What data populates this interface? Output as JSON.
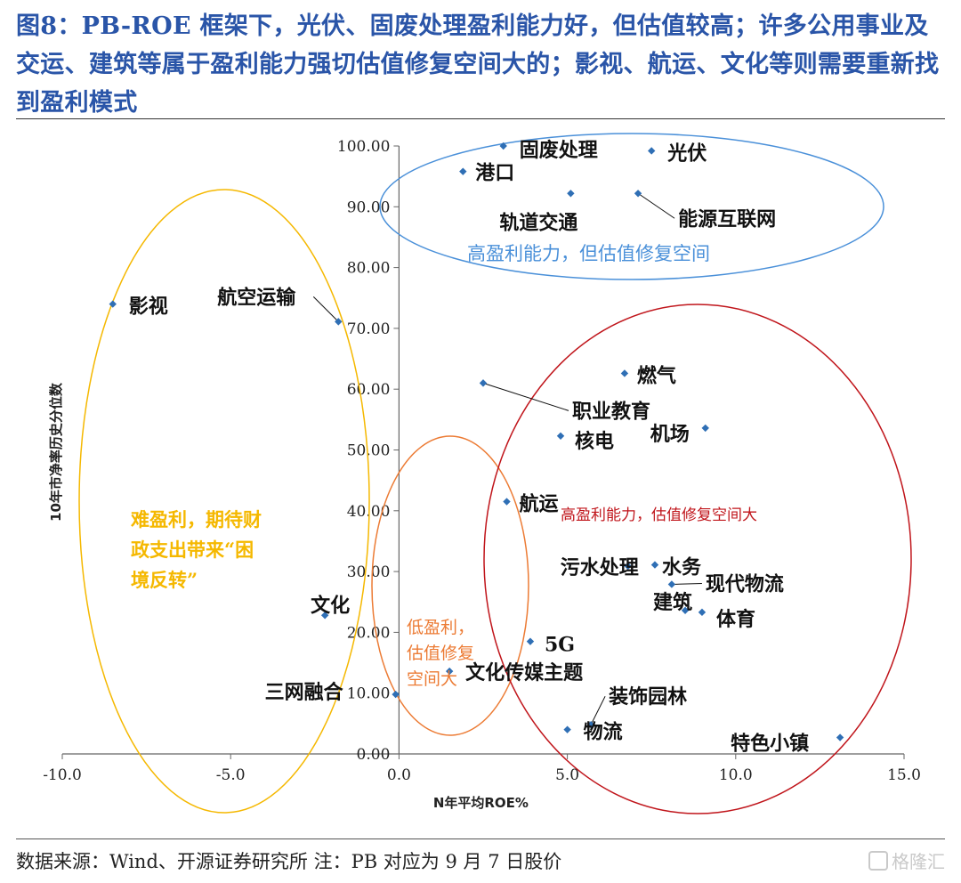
{
  "title": "图8：PB-ROE 框架下，光伏、固废处理盈利能力好，但估值较高；许多公用事业及交运、建筑等属于盈利能力强切估值修复空间大的；影视、航运、文化等则需要重新找到盈利模式",
  "source": "数据来源：Wind、开源证券研究所  注：PB 对应为 9 月 7 日股价",
  "watermark": "格隆汇",
  "colors": {
    "point": "#2f6fb5",
    "blue": "#4a90d9",
    "yellow": "#f5b800",
    "orange": "#ec7b34",
    "red": "#c0151b",
    "title": "#2a55a8"
  },
  "chart_data": {
    "type": "scatter",
    "xlabel": "N年平均ROE%",
    "ylabel": "10年市净率历史分位数",
    "xlim": [
      -10,
      15
    ],
    "ylim": [
      0,
      100
    ],
    "xticks": [
      "-10.0",
      "-5.0",
      "0.0",
      "5.0",
      "10.0",
      "15.0"
    ],
    "yticks": [
      "0.00",
      "10.00",
      "20.00",
      "30.00",
      "40.00",
      "50.00",
      "60.00",
      "70.00",
      "80.00",
      "90.00",
      "100.00"
    ],
    "points": [
      {
        "label": "固废处理",
        "x": 3.1,
        "y": 100.0
      },
      {
        "label": "光伏",
        "x": 7.5,
        "y": 99.2
      },
      {
        "label": "港口",
        "x": 1.9,
        "y": 95.8
      },
      {
        "label": "轨道交通",
        "x": 5.1,
        "y": 92.2
      },
      {
        "label": "能源互联网",
        "x": 7.1,
        "y": 92.2
      },
      {
        "label": "影视",
        "x": -8.5,
        "y": 74.0
      },
      {
        "label": "航空运输",
        "x": -1.8,
        "y": 71.1
      },
      {
        "label": "燃气",
        "x": 6.7,
        "y": 62.6
      },
      {
        "label": "职业教育",
        "x": 2.5,
        "y": 61.0
      },
      {
        "label": "机场",
        "x": 9.1,
        "y": 53.6
      },
      {
        "label": "核电",
        "x": 4.8,
        "y": 52.3
      },
      {
        "label": "航运",
        "x": 3.2,
        "y": 41.5
      },
      {
        "label": "水务",
        "x": 7.6,
        "y": 31.1
      },
      {
        "label": "污水处理",
        "x": 6.8,
        "y": 30.9
      },
      {
        "label": "现代物流",
        "x": 8.1,
        "y": 27.9
      },
      {
        "label": "建筑",
        "x": 8.5,
        "y": 23.6
      },
      {
        "label": "体育",
        "x": 9.0,
        "y": 23.3
      },
      {
        "label": "文化",
        "x": -2.2,
        "y": 22.8
      },
      {
        "label": "5G",
        "x": 3.9,
        "y": 18.5
      },
      {
        "label": "文化传媒主题",
        "x": 1.5,
        "y": 13.6
      },
      {
        "label": "三网融合",
        "x": -0.1,
        "y": 9.8
      },
      {
        "label": "装饰园林",
        "x": 5.7,
        "y": 4.8
      },
      {
        "label": "物流",
        "x": 5.0,
        "y": 4.0
      },
      {
        "label": "特色小镇",
        "x": 13.1,
        "y": 2.7
      }
    ],
    "annotations": [
      {
        "text": "高盈利能力，但估值修复空间",
        "color": "blue"
      },
      {
        "text": "高盈利能力，估值修复空间大",
        "color": "red"
      },
      {
        "text": "低盈利，估值修复空间大",
        "color": "orange"
      },
      {
        "text": "难盈利，期待财政支出带来“困境反转”",
        "color": "yellow"
      }
    ]
  }
}
